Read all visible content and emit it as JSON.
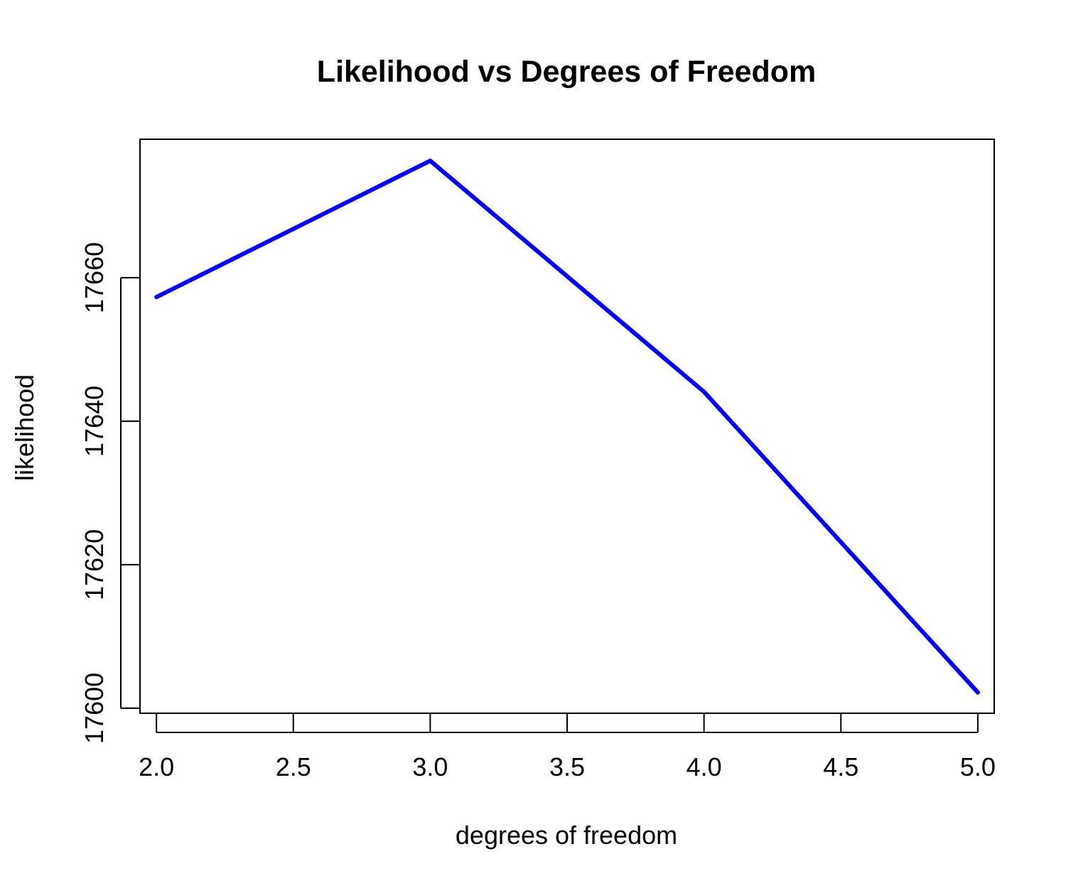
{
  "chart_data": {
    "type": "line",
    "title": "Likelihood vs Degrees of Freedom",
    "xlabel": "degrees of freedom",
    "ylabel": "likelihood",
    "xlim": [
      1.94,
      5.06
    ],
    "ylim": [
      17599.3,
      17679.3
    ],
    "x_ticks": [
      2.0,
      2.5,
      3.0,
      3.5,
      4.0,
      4.5,
      5.0
    ],
    "x_tick_labels": [
      "2.0",
      "2.5",
      "3.0",
      "3.5",
      "4.0",
      "4.5",
      "5.0"
    ],
    "y_ticks": [
      17600,
      17620,
      17640,
      17660
    ],
    "y_tick_labels": [
      "17600",
      "17620",
      "17640",
      "17660"
    ],
    "grid": false,
    "series": [
      {
        "x": [
          2,
          3,
          4,
          5
        ],
        "values": [
          17657.3,
          17676.3,
          17644.1,
          17602.2
        ],
        "color": "#0000ff"
      }
    ]
  }
}
